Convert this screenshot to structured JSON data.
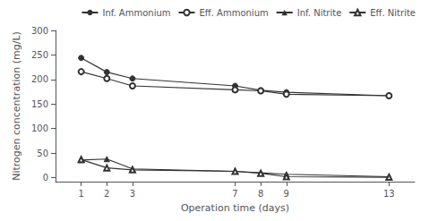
{
  "chart_data": {
    "type": "line",
    "x": [
      1,
      2,
      3,
      7,
      8,
      9,
      13
    ],
    "series": [
      {
        "name": "Inf. Ammonium",
        "color": "#333333",
        "marker": "circle",
        "values": [
          244,
          215,
          202,
          187,
          178,
          174,
          167
        ]
      },
      {
        "name": "Eff. Ammonium",
        "color": "#333333",
        "marker": "open circle",
        "values": [
          216,
          202,
          187,
          179,
          177,
          170,
          167
        ]
      },
      {
        "name": "Inf. Nitrite",
        "color": "#333333",
        "marker": "triangle",
        "values": [
          36,
          38,
          18,
          13,
          10,
          7,
          2
        ]
      },
      {
        "name": "Eff. Nitrite",
        "color": "#333333",
        "marker": "open triangle",
        "values": [
          37,
          20,
          16,
          13,
          9,
          2,
          1
        ]
      }
    ],
    "xlabel": "Operation time (days)",
    "ylabel": "Nitrogen concentration (mg/L)",
    "xlim": [
      0,
      14
    ],
    "xticks": [
      1,
      2,
      3,
      7,
      8,
      9,
      13
    ],
    "ylim": [
      -8,
      300
    ],
    "yticks": [
      0,
      50,
      100,
      150,
      200,
      250,
      300
    ],
    "grid": false,
    "legend": "upper right"
  }
}
